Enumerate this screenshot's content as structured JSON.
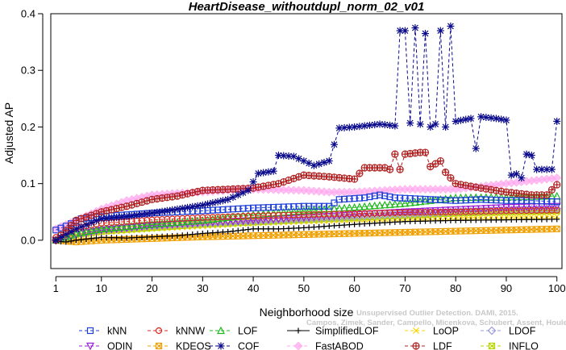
{
  "chart_data": {
    "type": "line",
    "title": "HeartDisease_withoutdupl_norm_02_v01",
    "xlabel": "Neighborhood size",
    "ylabel": "Adjusted AP",
    "xlim": [
      0,
      101
    ],
    "ylim": [
      -0.05,
      0.4
    ],
    "x_ticks": [
      1,
      10,
      20,
      30,
      40,
      50,
      60,
      70,
      80,
      90,
      100
    ],
    "x_tick_labels": [
      "1",
      "10",
      "20",
      "30",
      "40",
      "50",
      "60",
      "70",
      "80",
      "90",
      "100"
    ],
    "y_ticks": [
      0.0,
      0.1,
      0.2,
      0.3,
      0.4
    ],
    "y_tick_labels": [
      "0.0",
      "0.1",
      "0.2",
      "0.3",
      "0.4"
    ],
    "grid": false,
    "legend_position": "bottom",
    "credit": {
      "line1": "Unsupervised Outlier Detection. DAMI, 2015.",
      "line2": "Campos, Zimek, Sander, Campello, Micenkova, Schubert, Assent, Houle"
    },
    "series": [
      {
        "name": "kNN",
        "color": "#1f3fd8",
        "marker": "square",
        "dashed": true,
        "anchors": [
          [
            1,
            0.018
          ],
          [
            3,
            0.025
          ],
          [
            6,
            0.038
          ],
          [
            10,
            0.042
          ],
          [
            20,
            0.048
          ],
          [
            30,
            0.052
          ],
          [
            40,
            0.057
          ],
          [
            50,
            0.06
          ],
          [
            55,
            0.06
          ],
          [
            57,
            0.072
          ],
          [
            62,
            0.075
          ],
          [
            65,
            0.08
          ],
          [
            68,
            0.075
          ],
          [
            75,
            0.072
          ],
          [
            80,
            0.07
          ],
          [
            85,
            0.072
          ],
          [
            90,
            0.07
          ],
          [
            95,
            0.07
          ],
          [
            100,
            0.068
          ]
        ]
      },
      {
        "name": "kNNW",
        "color": "#d82a1f",
        "marker": "circle",
        "dashed": true,
        "anchors": [
          [
            1,
            0.005
          ],
          [
            5,
            0.022
          ],
          [
            10,
            0.03
          ],
          [
            20,
            0.036
          ],
          [
            30,
            0.04
          ],
          [
            40,
            0.043
          ],
          [
            50,
            0.045
          ],
          [
            60,
            0.047
          ],
          [
            70,
            0.049
          ],
          [
            80,
            0.05
          ],
          [
            90,
            0.052
          ],
          [
            100,
            0.053
          ]
        ]
      },
      {
        "name": "LOF",
        "color": "#1fb81f",
        "marker": "triangle",
        "dashed": true,
        "anchors": [
          [
            1,
            0.0
          ],
          [
            5,
            0.012
          ],
          [
            10,
            0.02
          ],
          [
            20,
            0.028
          ],
          [
            30,
            0.035
          ],
          [
            40,
            0.045
          ],
          [
            50,
            0.052
          ],
          [
            60,
            0.058
          ],
          [
            70,
            0.065
          ],
          [
            80,
            0.075
          ],
          [
            90,
            0.076
          ],
          [
            100,
            0.078
          ]
        ]
      },
      {
        "name": "SimplifiedLOF",
        "color": "#000000",
        "marker": "plus",
        "dashed": false,
        "anchors": [
          [
            1,
            -0.002
          ],
          [
            3,
            -0.003
          ],
          [
            5,
            0.0
          ],
          [
            10,
            0.005
          ],
          [
            15,
            0.004
          ],
          [
            20,
            0.006
          ],
          [
            25,
            0.008
          ],
          [
            30,
            0.012
          ],
          [
            35,
            0.015
          ],
          [
            40,
            0.02
          ],
          [
            45,
            0.02
          ],
          [
            50,
            0.022
          ],
          [
            60,
            0.028
          ],
          [
            70,
            0.033
          ],
          [
            80,
            0.035
          ],
          [
            90,
            0.036
          ],
          [
            100,
            0.037
          ]
        ]
      },
      {
        "name": "LoOP",
        "color": "#ffd400",
        "marker": "x",
        "dashed": true,
        "anchors": [
          [
            1,
            0.0
          ],
          [
            5,
            0.008
          ],
          [
            10,
            0.014
          ],
          [
            20,
            0.02
          ],
          [
            30,
            0.025
          ],
          [
            40,
            0.03
          ],
          [
            50,
            0.033
          ],
          [
            60,
            0.036
          ],
          [
            70,
            0.038
          ],
          [
            80,
            0.04
          ],
          [
            90,
            0.041
          ],
          [
            100,
            0.042
          ]
        ]
      },
      {
        "name": "LDOF",
        "color": "#9a9ad8",
        "marker": "diamond",
        "dashed": true,
        "anchors": [
          [
            1,
            0.0
          ],
          [
            5,
            0.01
          ],
          [
            10,
            0.018
          ],
          [
            20,
            0.025
          ],
          [
            30,
            0.03
          ],
          [
            40,
            0.034
          ],
          [
            50,
            0.038
          ],
          [
            60,
            0.042
          ],
          [
            70,
            0.046
          ],
          [
            80,
            0.05
          ],
          [
            90,
            0.053
          ],
          [
            100,
            0.056
          ]
        ]
      },
      {
        "name": "ODIN",
        "color": "#9a1fd8",
        "marker": "triangle-down",
        "dashed": true,
        "anchors": [
          [
            1,
            0.0
          ],
          [
            5,
            0.01
          ],
          [
            10,
            0.018
          ],
          [
            20,
            0.026
          ],
          [
            30,
            0.031
          ],
          [
            40,
            0.035
          ],
          [
            50,
            0.04
          ],
          [
            60,
            0.045
          ],
          [
            70,
            0.05
          ],
          [
            80,
            0.054
          ],
          [
            90,
            0.058
          ],
          [
            100,
            0.06
          ]
        ]
      },
      {
        "name": "KDEOS",
        "color": "#f0a000",
        "marker": "square-x",
        "dashed": true,
        "anchors": [
          [
            1,
            0.0
          ],
          [
            5,
            -0.003
          ],
          [
            10,
            0.0
          ],
          [
            20,
            0.003
          ],
          [
            30,
            0.006
          ],
          [
            40,
            0.008
          ],
          [
            50,
            0.01
          ],
          [
            60,
            0.012
          ],
          [
            70,
            0.014
          ],
          [
            80,
            0.016
          ],
          [
            90,
            0.018
          ],
          [
            100,
            0.02
          ]
        ]
      },
      {
        "name": "COF",
        "color": "#0a0a8c",
        "marker": "asterisk",
        "dashed": true,
        "anchors": [
          [
            1,
            0.0
          ],
          [
            5,
            0.02
          ],
          [
            10,
            0.038
          ],
          [
            15,
            0.042
          ],
          [
            20,
            0.048
          ],
          [
            25,
            0.055
          ],
          [
            30,
            0.062
          ],
          [
            35,
            0.072
          ],
          [
            39,
            0.088
          ],
          [
            41,
            0.118
          ],
          [
            44,
            0.122
          ],
          [
            45,
            0.15
          ],
          [
            48,
            0.148
          ],
          [
            50,
            0.14
          ],
          [
            52,
            0.132
          ],
          [
            55,
            0.14
          ],
          [
            57,
            0.198
          ],
          [
            60,
            0.2
          ],
          [
            65,
            0.205
          ],
          [
            68,
            0.202
          ],
          [
            69,
            0.37
          ],
          [
            70,
            0.37
          ],
          [
            71,
            0.207
          ],
          [
            72,
            0.375
          ],
          [
            73,
            0.205
          ],
          [
            74,
            0.365
          ],
          [
            75,
            0.2
          ],
          [
            76,
            0.205
          ],
          [
            77,
            0.37
          ],
          [
            78,
            0.2
          ],
          [
            79,
            0.378
          ],
          [
            80,
            0.21
          ],
          [
            83,
            0.215
          ],
          [
            84,
            0.162
          ],
          [
            85,
            0.218
          ],
          [
            88,
            0.215
          ],
          [
            90,
            0.212
          ],
          [
            91,
            0.115
          ],
          [
            92,
            0.117
          ],
          [
            93,
            0.11
          ],
          [
            94,
            0.152
          ],
          [
            95,
            0.15
          ],
          [
            96,
            0.125
          ],
          [
            98,
            0.125
          ],
          [
            99,
            0.125
          ],
          [
            100,
            0.21
          ]
        ]
      },
      {
        "name": "FastABOD",
        "color": "#ffaaee",
        "marker": "diamond-filled",
        "dashed": true,
        "anchors": [
          [
            1,
            0.02
          ],
          [
            5,
            0.035
          ],
          [
            10,
            0.055
          ],
          [
            15,
            0.07
          ],
          [
            20,
            0.08
          ],
          [
            25,
            0.083
          ],
          [
            30,
            0.085
          ],
          [
            35,
            0.088
          ],
          [
            40,
            0.09
          ],
          [
            50,
            0.088
          ],
          [
            55,
            0.085
          ],
          [
            60,
            0.085
          ],
          [
            70,
            0.09
          ],
          [
            80,
            0.09
          ],
          [
            90,
            0.1
          ],
          [
            95,
            0.105
          ],
          [
            100,
            0.11
          ]
        ]
      },
      {
        "name": "LDF",
        "color": "#b02020",
        "marker": "circle-plus",
        "dashed": true,
        "anchors": [
          [
            1,
            0.0
          ],
          [
            5,
            0.035
          ],
          [
            10,
            0.05
          ],
          [
            15,
            0.06
          ],
          [
            20,
            0.072
          ],
          [
            25,
            0.078
          ],
          [
            30,
            0.088
          ],
          [
            35,
            0.09
          ],
          [
            40,
            0.092
          ],
          [
            45,
            0.1
          ],
          [
            50,
            0.115
          ],
          [
            55,
            0.112
          ],
          [
            60,
            0.108
          ],
          [
            62,
            0.128
          ],
          [
            66,
            0.128
          ],
          [
            67,
            0.125
          ],
          [
            68,
            0.152
          ],
          [
            69,
            0.125
          ],
          [
            70,
            0.152
          ],
          [
            73,
            0.155
          ],
          [
            74,
            0.155
          ],
          [
            75,
            0.13
          ],
          [
            77,
            0.14
          ],
          [
            78,
            0.12
          ],
          [
            80,
            0.1
          ],
          [
            85,
            0.092
          ],
          [
            90,
            0.085
          ],
          [
            95,
            0.08
          ],
          [
            98,
            0.08
          ],
          [
            100,
            0.098
          ]
        ]
      },
      {
        "name": "INFLO",
        "color": "#b8d400",
        "marker": "square-x",
        "dashed": true,
        "anchors": [
          [
            1,
            0.0
          ],
          [
            5,
            0.01
          ],
          [
            10,
            0.016
          ],
          [
            20,
            0.022
          ],
          [
            30,
            0.028
          ],
          [
            40,
            0.032
          ],
          [
            50,
            0.036
          ],
          [
            60,
            0.04
          ],
          [
            70,
            0.044
          ],
          [
            80,
            0.048
          ],
          [
            90,
            0.05
          ],
          [
            100,
            0.052
          ]
        ]
      }
    ]
  }
}
